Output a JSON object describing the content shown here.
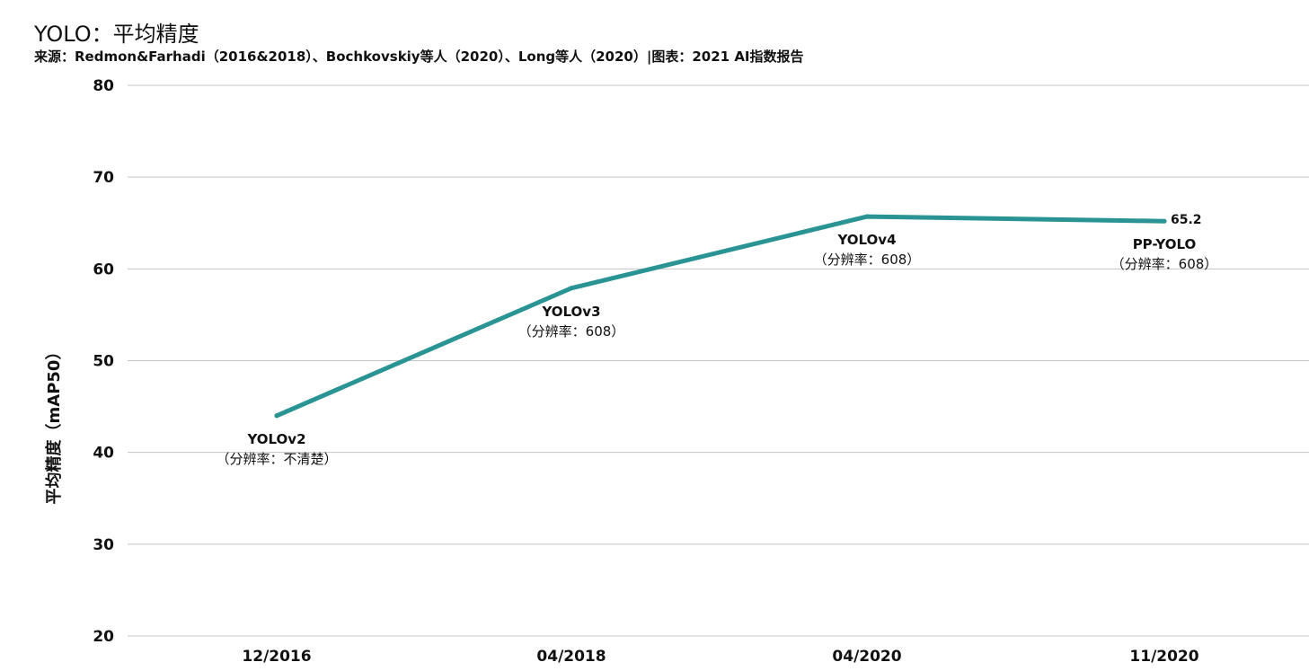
{
  "chart_data": {
    "type": "line",
    "title": "YOLO：平均精度",
    "subtitle": "来源：Redmon&Farhadi（2016&2018）、Bochkovskiy等人（2020）、Long等人（2020）|图表：2021 AI指数报告",
    "xlabel": "",
    "ylabel": "平均精度（mAP50）",
    "ylim": [
      20,
      80
    ],
    "yticks": [
      20,
      30,
      40,
      50,
      60,
      70,
      80
    ],
    "grid": true,
    "categories": [
      "12/2016",
      "04/2018",
      "04/2020",
      "11/2020"
    ],
    "series": [
      {
        "values": [
          44.0,
          57.9,
          65.7,
          65.2
        ],
        "color": "#2a9494"
      }
    ],
    "annotations": [
      {
        "name": "YOLOv2",
        "detail": "（分辨率：不清楚）"
      },
      {
        "name": "YOLOv3",
        "detail": "（分辨率：608）"
      },
      {
        "name": "YOLOv4",
        "detail": "（分辨率：608）"
      },
      {
        "name": "PP-YOLO",
        "detail": "（分辨率：608）"
      }
    ],
    "value_label": "65.2"
  }
}
